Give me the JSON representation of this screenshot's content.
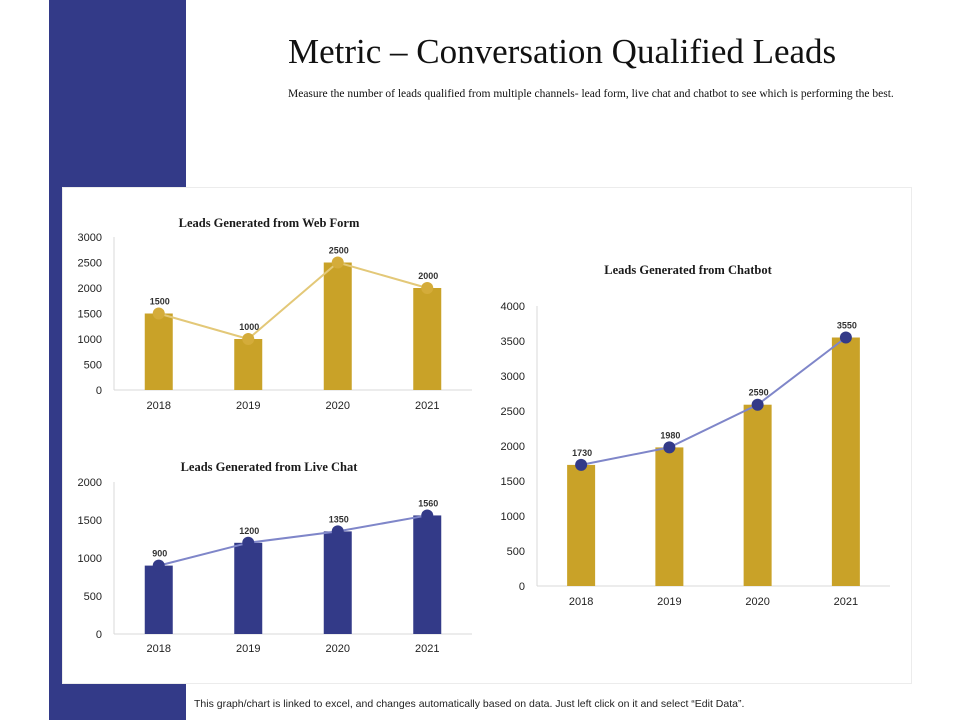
{
  "page": {
    "title": "Metric – Conversation Qualified Leads",
    "subtitle": "Measure the number of leads qualified from multiple channels- lead form, live chat and chatbot to see which is performing the best.",
    "footer": "This graph/chart is linked to excel, and changes automatically based on data. Just left click on it and select “Edit Data”."
  },
  "colors": {
    "sidebar": "#333A88",
    "gold_bar": "#C9A228",
    "navy_bar": "#333A88",
    "gold_marker": "#D4AC3A",
    "gold_line": "#E3C878",
    "navy_marker": "#333A88",
    "blue_line": "#7F86C9",
    "axis": "#d9d9d9"
  },
  "chart_data": [
    {
      "type": "bar",
      "title": "Leads Generated from Web Form",
      "categories": [
        "2018",
        "2019",
        "2020",
        "2021"
      ],
      "values": [
        1500,
        1000,
        2500,
        2000
      ],
      "line_overlay": true,
      "ylim": [
        0,
        3000
      ],
      "yticks": [
        0,
        500,
        1000,
        1500,
        2000,
        2500,
        3000
      ],
      "bar_color": "#C9A228",
      "line_color": "#E3C878",
      "marker_color": "#D4AC3A",
      "grid": false
    },
    {
      "type": "bar",
      "title": "Leads Generated from Live Chat",
      "categories": [
        "2018",
        "2019",
        "2020",
        "2021"
      ],
      "values": [
        900,
        1200,
        1350,
        1560
      ],
      "line_overlay": true,
      "ylim": [
        0,
        2000
      ],
      "yticks": [
        0,
        500,
        1000,
        1500,
        2000
      ],
      "bar_color": "#333A88",
      "line_color": "#7F86C9",
      "marker_color": "#333A88",
      "grid": false
    },
    {
      "type": "bar",
      "title": "Leads Generated from Chatbot",
      "categories": [
        "2018",
        "2019",
        "2020",
        "2021"
      ],
      "values": [
        1730,
        1980,
        2590,
        3550
      ],
      "line_overlay": true,
      "ylim": [
        0,
        4000
      ],
      "yticks": [
        0,
        500,
        1000,
        1500,
        2000,
        2500,
        3000,
        3500,
        4000
      ],
      "bar_color": "#C9A228",
      "line_color": "#7F86C9",
      "marker_color": "#333A88",
      "grid": false
    }
  ]
}
